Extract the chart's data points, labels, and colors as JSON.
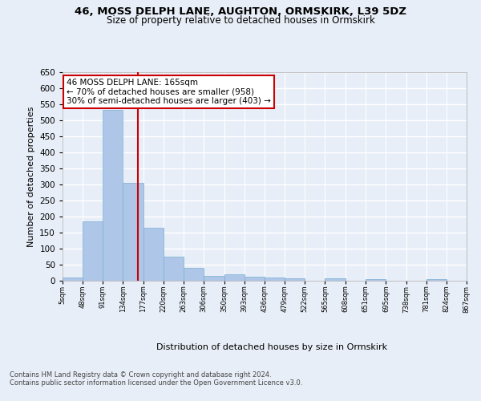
{
  "title1": "46, MOSS DELPH LANE, AUGHTON, ORMSKIRK, L39 5DZ",
  "title2": "Size of property relative to detached houses in Ormskirk",
  "xlabel": "Distribution of detached houses by size in Ormskirk",
  "ylabel": "Number of detached properties",
  "bin_edges": [
    5,
    48,
    91,
    134,
    177,
    220,
    263,
    306,
    350,
    393,
    436,
    479,
    522,
    565,
    608,
    651,
    695,
    738,
    781,
    824,
    867
  ],
  "bar_heights": [
    10,
    185,
    533,
    305,
    164,
    74,
    41,
    16,
    19,
    12,
    10,
    8,
    0,
    7,
    0,
    5,
    0,
    0,
    5,
    0
  ],
  "bar_color": "#aec6e8",
  "bar_edge_color": "#7bafd4",
  "property_size": 165,
  "vline_color": "#cc0000",
  "annotation_line1": "46 MOSS DELPH LANE: 165sqm",
  "annotation_line2": "← 70% of detached houses are smaller (958)",
  "annotation_line3": "30% of semi-detached houses are larger (403) →",
  "annotation_box_color": "#ffffff",
  "annotation_box_edge": "#cc0000",
  "bg_color": "#e8eef7",
  "plot_bg_color": "#e8eef7",
  "grid_color": "#ffffff",
  "ylim": [
    0,
    650
  ],
  "yticks": [
    0,
    50,
    100,
    150,
    200,
    250,
    300,
    350,
    400,
    450,
    500,
    550,
    600,
    650
  ],
  "footer_line1": "Contains HM Land Registry data © Crown copyright and database right 2024.",
  "footer_line2": "Contains public sector information licensed under the Open Government Licence v3.0.",
  "tick_labels": [
    "5sqm",
    "48sqm",
    "91sqm",
    "134sqm",
    "177sqm",
    "220sqm",
    "263sqm",
    "306sqm",
    "350sqm",
    "393sqm",
    "436sqm",
    "479sqm",
    "522sqm",
    "565sqm",
    "608sqm",
    "651sqm",
    "695sqm",
    "738sqm",
    "781sqm",
    "824sqm",
    "867sqm"
  ]
}
